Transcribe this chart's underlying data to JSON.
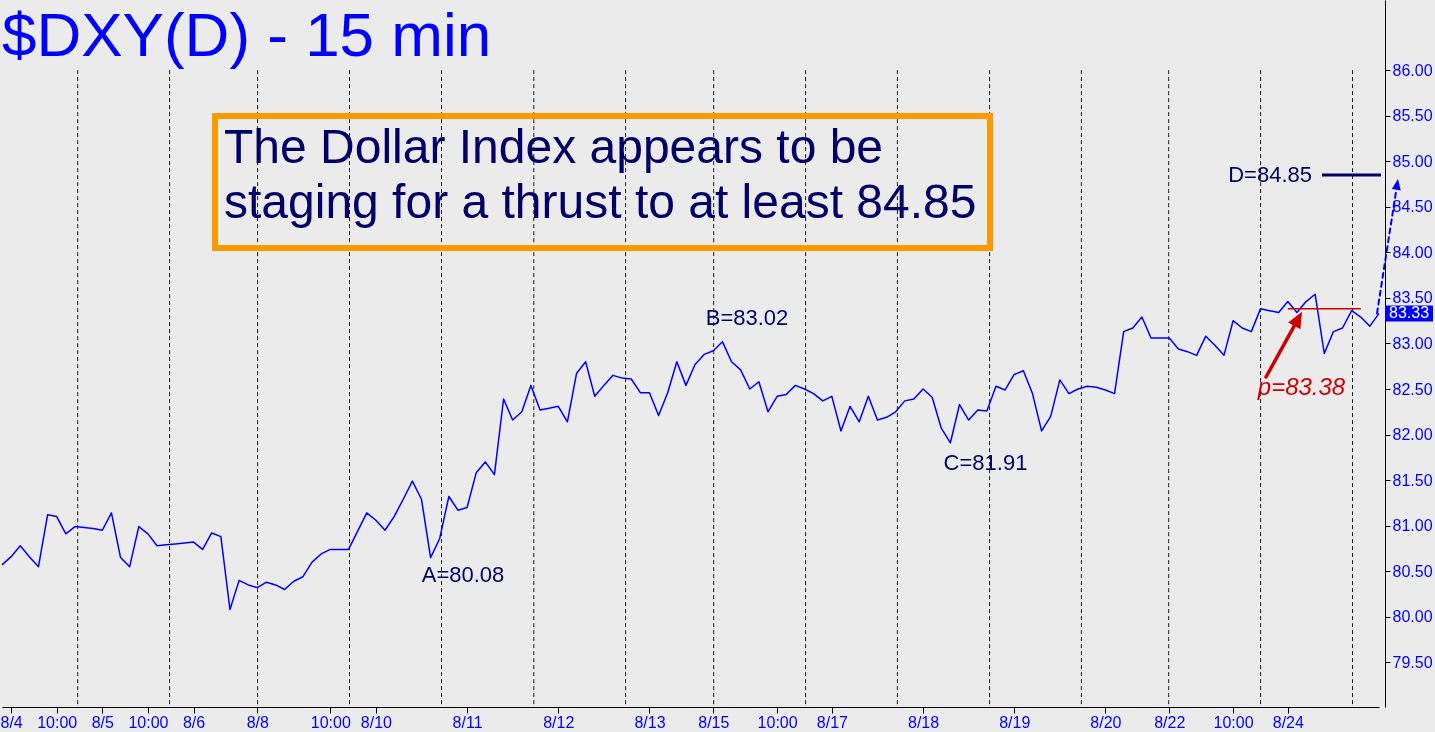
{
  "chart_data": {
    "type": "line",
    "title": "$DXY(D) - 15 min",
    "categories": [
      null,
      "8/4",
      null,
      null,
      null,
      null,
      "10:00",
      null,
      null,
      null,
      null,
      "8/5",
      null,
      null,
      null,
      null,
      "10:00",
      null,
      null,
      null,
      null,
      "8/6",
      null,
      null,
      null,
      null,
      null,
      null,
      "8/8",
      null,
      null,
      null,
      null,
      null,
      null,
      null,
      "10:00",
      null,
      null,
      null,
      null,
      "8/10",
      null,
      null,
      null,
      null,
      null,
      null,
      null,
      null,
      null,
      "8/11",
      null,
      null,
      null,
      null,
      null,
      null,
      null,
      null,
      null,
      "8/12",
      null,
      null,
      null,
      null,
      null,
      null,
      null,
      null,
      null,
      "8/13",
      null,
      null,
      null,
      null,
      null,
      null,
      "8/15",
      null,
      null,
      null,
      null,
      null,
      null,
      "10:00",
      null,
      null,
      null,
      null,
      null,
      "8/17",
      null,
      null,
      null,
      null,
      null,
      null,
      null,
      null,
      null,
      "8/18",
      null,
      null,
      null,
      null,
      null,
      null,
      null,
      null,
      null,
      "8/19",
      null,
      null,
      null,
      null,
      null,
      null,
      null,
      null,
      null,
      "8/20",
      null,
      null,
      null,
      null,
      null,
      null,
      "8/22",
      null,
      null,
      null,
      null,
      null,
      null,
      "10:00",
      null,
      null,
      null,
      null,
      null,
      "8/24",
      null,
      null,
      null,
      null,
      null,
      null,
      null,
      null,
      null,
      null
    ],
    "series": [
      {
        "color": "#0000ff",
        "values": [
          80.57,
          80.66,
          80.78,
          80.66,
          80.55,
          81.12,
          81.1,
          80.91,
          80.99,
          80.98,
          80.97,
          80.95,
          81.14,
          80.65,
          80.55,
          80.99,
          80.91,
          80.78,
          80.79,
          80.8,
          80.81,
          80.82,
          80.74,
          80.92,
          80.88,
          80.08,
          80.4,
          80.35,
          80.32,
          80.38,
          80.35,
          80.3,
          80.39,
          80.44,
          80.6,
          80.69,
          80.74,
          80.74,
          80.74,
          80.94,
          81.14,
          81.06,
          80.95,
          81.1,
          81.29,
          81.49,
          81.29,
          80.65,
          80.86,
          81.32,
          81.17,
          81.2,
          81.58,
          81.7,
          81.56,
          82.39,
          82.16,
          82.25,
          82.54,
          82.27,
          82.29,
          82.31,
          82.14,
          82.67,
          82.8,
          82.42,
          82.54,
          82.65,
          82.62,
          82.61,
          82.46,
          82.46,
          82.21,
          82.46,
          82.8,
          82.54,
          82.77,
          82.88,
          82.92,
          83.02,
          82.8,
          82.71,
          82.5,
          82.58,
          82.25,
          82.42,
          82.44,
          82.54,
          82.5,
          82.45,
          82.37,
          82.42,
          82.04,
          82.31,
          82.14,
          82.42,
          82.16,
          82.19,
          82.25,
          82.37,
          82.39,
          82.5,
          82.41,
          82.07,
          81.91,
          82.33,
          82.16,
          82.27,
          82.26,
          82.53,
          82.49,
          82.66,
          82.7,
          82.45,
          82.04,
          82.2,
          82.6,
          82.45,
          82.5,
          82.53,
          82.52,
          82.49,
          82.45,
          83.13,
          83.17,
          83.29,
          83.06,
          83.06,
          83.06,
          82.94,
          82.91,
          82.87,
          83.08,
          82.98,
          82.87,
          83.25,
          83.17,
          83.13,
          83.38,
          83.36,
          83.34,
          83.46,
          83.34,
          83.46,
          83.54,
          82.89,
          83.13,
          83.17,
          83.36,
          83.29,
          83.19,
          83.33
        ]
      },
      {
        "color": "#cc0000",
        "values": [
          null,
          null,
          null,
          null,
          null,
          null,
          null,
          null,
          null,
          null,
          null,
          null,
          null,
          null,
          null,
          null,
          null,
          null,
          null,
          null,
          null,
          null,
          null,
          null,
          null,
          null,
          null,
          null,
          null,
          null,
          null,
          null,
          null,
          null,
          null,
          null,
          null,
          null,
          null,
          null,
          null,
          null,
          null,
          null,
          null,
          null,
          null,
          null,
          null,
          null,
          null,
          null,
          null,
          null,
          null,
          null,
          null,
          null,
          null,
          null,
          null,
          null,
          null,
          null,
          null,
          null,
          null,
          null,
          null,
          null,
          null,
          null,
          null,
          null,
          null,
          null,
          null,
          null,
          null,
          null,
          null,
          null,
          null,
          null,
          null,
          null,
          null,
          null,
          null,
          null,
          null,
          null,
          null,
          null,
          null,
          null,
          null,
          null,
          null,
          null,
          null,
          null,
          null,
          null,
          null,
          null,
          null,
          null,
          null,
          null,
          null,
          null,
          null,
          null,
          null,
          null,
          null,
          null,
          null,
          null,
          null,
          null,
          null,
          null,
          null,
          null,
          null,
          null,
          null,
          null,
          null,
          null,
          null,
          null,
          null,
          null,
          null,
          null,
          null,
          null,
          null,
          83.38,
          83.38,
          83.38,
          83.38,
          83.38,
          83.38,
          83.38,
          83.38,
          83.38,
          null,
          null
        ]
      }
    ],
    "ylim": [
      79.01,
      86.77
    ],
    "yticks": [
      {
        "value": 79.5,
        "label": "79.50"
      },
      {
        "value": 80,
        "label": "80.00"
      },
      {
        "value": 80.5,
        "label": "80.50"
      },
      {
        "value": 81,
        "label": "81.00"
      },
      {
        "value": 81.5,
        "label": "81.50"
      },
      {
        "value": 82,
        "label": "82.00"
      },
      {
        "value": 82.5,
        "label": "82.50"
      },
      {
        "value": 83,
        "label": "83.00"
      },
      {
        "value": 83.5,
        "label": "83.50"
      },
      {
        "value": 84,
        "label": "84.00"
      },
      {
        "value": 84.5,
        "label": "84.50"
      },
      {
        "value": 85,
        "label": "85.00"
      },
      {
        "value": 85.5,
        "label": "85.50"
      },
      {
        "value": 86,
        "label": "86.00"
      }
    ],
    "ref_lines": [
      {
        "axis": "y",
        "value": 84.85,
        "label": "D=84.85",
        "color": "#000066"
      }
    ],
    "annotations": [
      "The Dollar Index appears to be\nstaging for a thrust to at least 84.85",
      "A=80.08",
      "B=83.02",
      "C=81.91",
      "p=83.38",
      "83.33"
    ]
  }
}
